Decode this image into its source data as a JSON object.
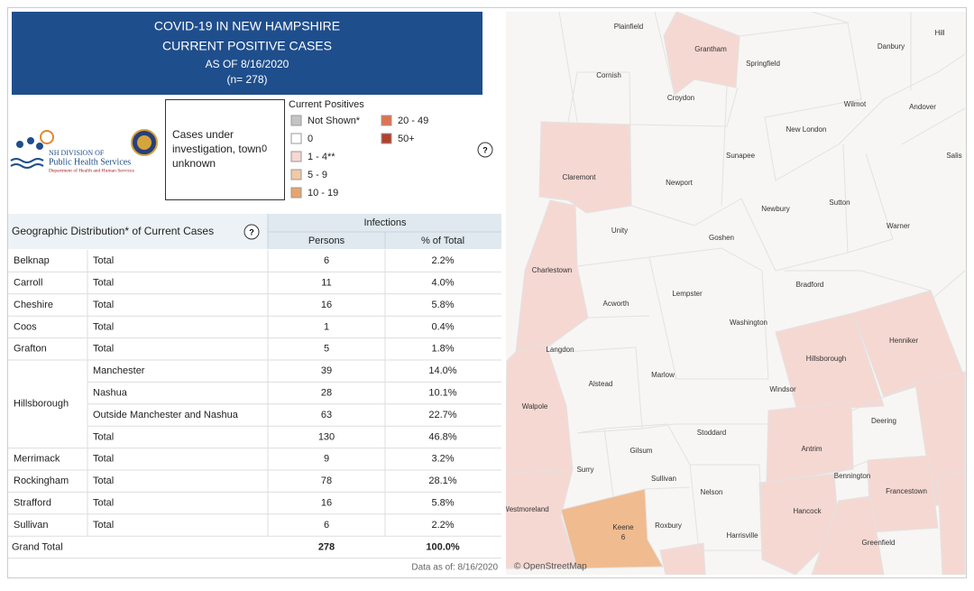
{
  "header": {
    "title": "COVID-19 IN NEW HAMPSHIRE",
    "subtitle": "CURRENT POSITIVE CASES",
    "date": "AS OF 8/16/2020",
    "count": "(n= 278)"
  },
  "logo": {
    "line1": "NH DIVISION OF",
    "line2": "Public Health Services",
    "line3": "Department of Health and Human Services"
  },
  "unknown": {
    "label": "Cases under investigation, town unknown",
    "value": "0"
  },
  "legend": {
    "title": "Current Positives",
    "items": [
      {
        "name": "Not Shown*",
        "color": "#c4c4c4"
      },
      {
        "name": "0",
        "color": "#ffffff"
      },
      {
        "name": "1 - 4**",
        "color": "#f6d8d2"
      },
      {
        "name": "5 - 9",
        "color": "#f3c9a5"
      },
      {
        "name": "10 - 19",
        "color": "#e9a46c"
      },
      {
        "name": "20 - 49",
        "color": "#e2714f"
      },
      {
        "name": "50+",
        "color": "#b3402b"
      }
    ],
    "help": "?"
  },
  "table": {
    "title": "Geographic Distribution* of Current Cases",
    "help": "?",
    "group": "Infections",
    "persons": "Persons",
    "percent": "% of Total",
    "rows": [
      {
        "county": "Belknap",
        "items": [
          {
            "area": "Total",
            "persons": "6",
            "percent": "2.2%"
          }
        ]
      },
      {
        "county": "Carroll",
        "items": [
          {
            "area": "Total",
            "persons": "11",
            "percent": "4.0%"
          }
        ]
      },
      {
        "county": "Cheshire",
        "items": [
          {
            "area": "Total",
            "persons": "16",
            "percent": "5.8%"
          }
        ]
      },
      {
        "county": "Coos",
        "items": [
          {
            "area": "Total",
            "persons": "1",
            "percent": "0.4%"
          }
        ]
      },
      {
        "county": "Grafton",
        "items": [
          {
            "area": "Total",
            "persons": "5",
            "percent": "1.8%"
          }
        ]
      },
      {
        "county": "Hillsborough",
        "items": [
          {
            "area": "Manchester",
            "persons": "39",
            "percent": "14.0%"
          },
          {
            "area": "Nashua",
            "persons": "28",
            "percent": "10.1%"
          },
          {
            "area": "Outside Manchester and Nashua",
            "persons": "63",
            "percent": "22.7%"
          },
          {
            "area": "Total",
            "persons": "130",
            "percent": "46.8%"
          }
        ]
      },
      {
        "county": "Merrimack",
        "items": [
          {
            "area": "Total",
            "persons": "9",
            "percent": "3.2%"
          }
        ]
      },
      {
        "county": "Rockingham",
        "items": [
          {
            "area": "Total",
            "persons": "78",
            "percent": "28.1%"
          }
        ]
      },
      {
        "county": "Strafford",
        "items": [
          {
            "area": "Total",
            "persons": "16",
            "percent": "5.8%"
          }
        ]
      },
      {
        "county": "Sullivan",
        "items": [
          {
            "area": "Total",
            "persons": "6",
            "percent": "2.2%"
          }
        ]
      }
    ],
    "grand_total": {
      "label": "Grand Total",
      "persons": "278",
      "percent": "100.0%"
    }
  },
  "footer": {
    "data_as_of": "Data as of:  8/16/2020",
    "attribution": "© OpenStreetMap"
  },
  "map": {
    "towns": [
      {
        "name": "Plainfield"
      },
      {
        "name": "Grantham"
      },
      {
        "name": "Springfield"
      },
      {
        "name": "Danbury"
      },
      {
        "name": "Hill"
      },
      {
        "name": "Cornish"
      },
      {
        "name": "Croydon"
      },
      {
        "name": "Wilmot"
      },
      {
        "name": "Andover"
      },
      {
        "name": "New London"
      },
      {
        "name": "Salis"
      },
      {
        "name": "Claremont"
      },
      {
        "name": "Newport"
      },
      {
        "name": "Sunapee"
      },
      {
        "name": "Newbury"
      },
      {
        "name": "Sutton"
      },
      {
        "name": "Warner"
      },
      {
        "name": "Unity"
      },
      {
        "name": "Goshen"
      },
      {
        "name": "Charlestown"
      },
      {
        "name": "Bradford"
      },
      {
        "name": "Acworth"
      },
      {
        "name": "Lempster"
      },
      {
        "name": "Washington"
      },
      {
        "name": "Langdon"
      },
      {
        "name": "Hillsborough"
      },
      {
        "name": "Henniker"
      },
      {
        "name": "Alstead"
      },
      {
        "name": "Marlow"
      },
      {
        "name": "Windsor"
      },
      {
        "name": "Walpole"
      },
      {
        "name": "Deering"
      },
      {
        "name": "Stoddard"
      },
      {
        "name": "Antrim"
      },
      {
        "name": "Gilsum"
      },
      {
        "name": "Surry"
      },
      {
        "name": "Sullivan"
      },
      {
        "name": "Bennington"
      },
      {
        "name": "Francestown"
      },
      {
        "name": "Nelson"
      },
      {
        "name": "Hancock"
      },
      {
        "name": "Westmoreland"
      },
      {
        "name": "Keene",
        "count": "6"
      },
      {
        "name": "Roxbury"
      },
      {
        "name": "Harrisville"
      },
      {
        "name": "Greenfield"
      }
    ]
  }
}
